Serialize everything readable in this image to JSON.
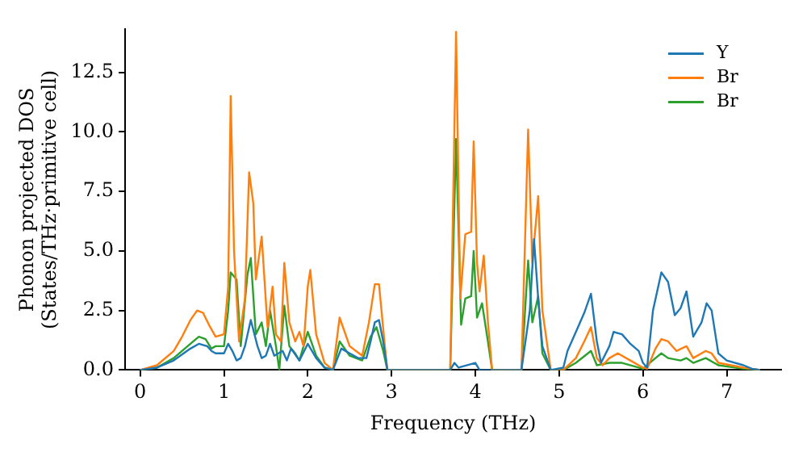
{
  "chart_data": {
    "type": "line",
    "xlabel": "Frequency (THz)",
    "ylabel": "Phonon projected DOS\n(States/THz·primitive cell)",
    "xlim": [
      -0.18,
      7.65
    ],
    "ylim": [
      0,
      14.3
    ],
    "xticks": [
      0,
      1,
      2,
      3,
      4,
      5,
      6,
      7
    ],
    "yticks": [
      {
        "value": 0,
        "label": "0.0"
      },
      {
        "value": 2.5,
        "label": "2.5"
      },
      {
        "value": 5,
        "label": "5.0"
      },
      {
        "value": 7.5,
        "label": "7.5"
      },
      {
        "value": 10,
        "label": "10.0"
      },
      {
        "value": 12.5,
        "label": "12.5"
      }
    ],
    "grid": false,
    "legend": "top right",
    "marker": "none",
    "line_style": "solid",
    "series": [
      {
        "name": "Y",
        "color": "#1f77b4",
        "x": [
          0,
          0.2,
          0.4,
          0.6,
          0.7,
          0.8,
          0.85,
          0.9,
          1.0,
          1.05,
          1.1,
          1.15,
          1.2,
          1.25,
          1.32,
          1.4,
          1.45,
          1.5,
          1.55,
          1.6,
          1.7,
          1.75,
          1.8,
          1.9,
          2.0,
          2.1,
          2.2,
          2.3,
          2.4,
          2.5,
          2.6,
          2.7,
          2.75,
          2.8,
          2.85,
          2.9,
          2.95,
          3.7,
          3.75,
          3.8,
          4.0,
          4.05,
          4.55,
          4.65,
          4.7,
          4.75,
          4.8,
          4.9,
          5.05,
          5.1,
          5.2,
          5.3,
          5.38,
          5.45,
          5.5,
          5.6,
          5.65,
          5.75,
          5.85,
          5.95,
          6.0,
          6.05,
          6.12,
          6.22,
          6.3,
          6.38,
          6.45,
          6.52,
          6.6,
          6.7,
          6.76,
          6.82,
          6.9,
          7.0,
          7.2,
          7.3,
          7.4
        ],
        "values": [
          0,
          0.1,
          0.4,
          0.9,
          1.1,
          1.0,
          0.8,
          0.7,
          0.7,
          1.1,
          0.8,
          0.4,
          0.5,
          1.0,
          2.1,
          1.0,
          0.5,
          0.6,
          1.1,
          0.6,
          0.8,
          0.4,
          0.9,
          0.4,
          1.1,
          0.5,
          0.1,
          0,
          0.9,
          0.7,
          0.5,
          0.5,
          1.2,
          2.0,
          2.1,
          1.2,
          0,
          0,
          0.3,
          0.1,
          0.3,
          0,
          0,
          2.5,
          5.5,
          3.0,
          1.0,
          0,
          0.1,
          0.8,
          1.6,
          2.4,
          3.2,
          1.2,
          0.3,
          1.0,
          1.6,
          1.5,
          1.1,
          0.8,
          0.3,
          0.1,
          2.5,
          4.1,
          3.7,
          2.3,
          2.6,
          3.3,
          1.4,
          2.0,
          2.8,
          2.5,
          0.7,
          0.4,
          0.2,
          0.05,
          0
        ]
      },
      {
        "name": "Br",
        "color": "#ff7f0e",
        "x": [
          0,
          0.2,
          0.4,
          0.5,
          0.6,
          0.68,
          0.75,
          0.82,
          0.9,
          1.0,
          1.05,
          1.08,
          1.12,
          1.18,
          1.25,
          1.3,
          1.35,
          1.38,
          1.45,
          1.52,
          1.58,
          1.62,
          1.68,
          1.72,
          1.78,
          1.85,
          1.9,
          1.95,
          2.0,
          2.03,
          2.1,
          2.2,
          2.3,
          2.38,
          2.5,
          2.65,
          2.73,
          2.8,
          2.85,
          2.92,
          2.95,
          3.7,
          3.77,
          3.82,
          3.88,
          3.95,
          3.98,
          4.02,
          4.05,
          4.1,
          4.15,
          4.2,
          4.55,
          4.63,
          4.68,
          4.75,
          4.8,
          4.9,
          5.05,
          5.2,
          5.3,
          5.38,
          5.45,
          5.52,
          5.6,
          5.7,
          5.85,
          6.0,
          6.05,
          6.15,
          6.22,
          6.3,
          6.4,
          6.52,
          6.6,
          6.75,
          6.82,
          6.9,
          7.2,
          7.4
        ],
        "values": [
          0,
          0.2,
          0.8,
          1.4,
          2.1,
          2.5,
          2.4,
          1.9,
          1.4,
          1.5,
          3.5,
          11.5,
          5.0,
          1.2,
          3.0,
          8.3,
          7.0,
          3.8,
          5.6,
          1.8,
          3.5,
          1.5,
          1.2,
          4.5,
          2.0,
          1.2,
          1.6,
          1.0,
          3.5,
          4.2,
          1.5,
          0.3,
          0,
          2.2,
          1.0,
          0.6,
          2.0,
          3.6,
          3.6,
          1.0,
          0,
          0,
          14.2,
          3.0,
          5.7,
          5.8,
          9.6,
          4.5,
          3.3,
          4.8,
          2.0,
          0,
          0,
          10.1,
          4.5,
          7.3,
          2.5,
          0,
          0,
          0.5,
          1.2,
          1.8,
          0.5,
          0.2,
          0.5,
          0.7,
          0.4,
          0.1,
          0.05,
          0.9,
          1.3,
          1.2,
          0.8,
          1.0,
          0.5,
          0.8,
          0.7,
          0.3,
          0.1,
          0
        ]
      },
      {
        "name": "Br",
        "color": "#2ca02c",
        "x": [
          0,
          0.2,
          0.4,
          0.6,
          0.7,
          0.78,
          0.85,
          0.9,
          1.0,
          1.05,
          1.08,
          1.15,
          1.2,
          1.28,
          1.32,
          1.38,
          1.45,
          1.5,
          1.55,
          1.62,
          1.66,
          1.72,
          1.78,
          1.85,
          1.9,
          2.0,
          2.1,
          2.2,
          2.3,
          2.38,
          2.5,
          2.65,
          2.75,
          2.82,
          2.9,
          2.95,
          3.7,
          3.77,
          3.83,
          3.88,
          3.95,
          3.98,
          4.02,
          4.08,
          4.15,
          4.2,
          4.55,
          4.63,
          4.68,
          4.75,
          4.8,
          4.9,
          5.05,
          5.2,
          5.38,
          5.45,
          5.6,
          5.75,
          6.0,
          6.15,
          6.22,
          6.3,
          6.45,
          6.52,
          6.6,
          6.75,
          6.9,
          7.2,
          7.4
        ],
        "values": [
          0,
          0.1,
          0.5,
          1.1,
          1.4,
          1.3,
          0.9,
          1.0,
          1.0,
          2.5,
          4.1,
          3.8,
          1.0,
          4.0,
          4.7,
          1.5,
          2.0,
          1.0,
          2.5,
          1.0,
          0,
          2.7,
          1.0,
          0.7,
          0.4,
          1.6,
          0.6,
          0.1,
          0,
          1.2,
          0.6,
          0.4,
          1.4,
          1.8,
          0.8,
          0,
          0,
          9.7,
          1.9,
          3.0,
          3.1,
          5.0,
          2.2,
          2.8,
          1.2,
          0,
          0,
          4.6,
          2.0,
          3.1,
          0.7,
          0,
          0,
          0.3,
          0.8,
          0.2,
          0.3,
          0.3,
          0.05,
          0.5,
          0.7,
          0.5,
          0.4,
          0.5,
          0.3,
          0.5,
          0.2,
          0.05,
          0
        ]
      }
    ]
  }
}
